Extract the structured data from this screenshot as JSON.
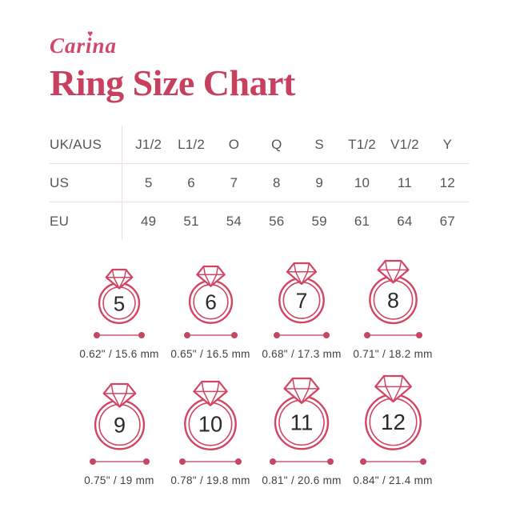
{
  "brand": {
    "name": "Carina",
    "heart": "♥"
  },
  "title": "Ring Size Chart",
  "size_table": {
    "rows": [
      {
        "label": "UK/AUS",
        "values": [
          "J1/2",
          "L1/2",
          "O",
          "Q",
          "S",
          "T1/2",
          "V1/2",
          "Y"
        ]
      },
      {
        "label": "US",
        "values": [
          "5",
          "6",
          "7",
          "8",
          "9",
          "10",
          "11",
          "12"
        ]
      },
      {
        "label": "EU",
        "values": [
          "49",
          "51",
          "54",
          "56",
          "59",
          "61",
          "64",
          "67"
        ]
      }
    ]
  },
  "rings": [
    {
      "us_size": "5",
      "diameter_label": "0.62\" / 15.6 mm",
      "diameter_mm": 15.6
    },
    {
      "us_size": "6",
      "diameter_label": "0.65\" / 16.5 mm",
      "diameter_mm": 16.5
    },
    {
      "us_size": "7",
      "diameter_label": "0.68\" / 17.3 mm",
      "diameter_mm": 17.3
    },
    {
      "us_size": "8",
      "diameter_label": "0.71\" / 18.2 mm",
      "diameter_mm": 18.2
    },
    {
      "us_size": "9",
      "diameter_label": "0.75\" / 19 mm",
      "diameter_mm": 19
    },
    {
      "us_size": "10",
      "diameter_label": "0.78\" / 19.8 mm",
      "diameter_mm": 19.8
    },
    {
      "us_size": "11",
      "diameter_label": "0.81\" / 20.6 mm",
      "diameter_mm": 20.6
    },
    {
      "us_size": "12",
      "diameter_label": "0.84\" / 21.4 mm",
      "diameter_mm": 21.4
    }
  ],
  "colors": {
    "brand_pink": "#c7415f",
    "logo_pink": "#d24769",
    "ring_stroke": "#d14563",
    "ring_number": "#2b2b2e",
    "divider": "#f3dee1",
    "table_text": "#56565a",
    "measure_line": "#dc8197",
    "measure_dot": "#c64763",
    "measure_text": "#3f3f42"
  }
}
